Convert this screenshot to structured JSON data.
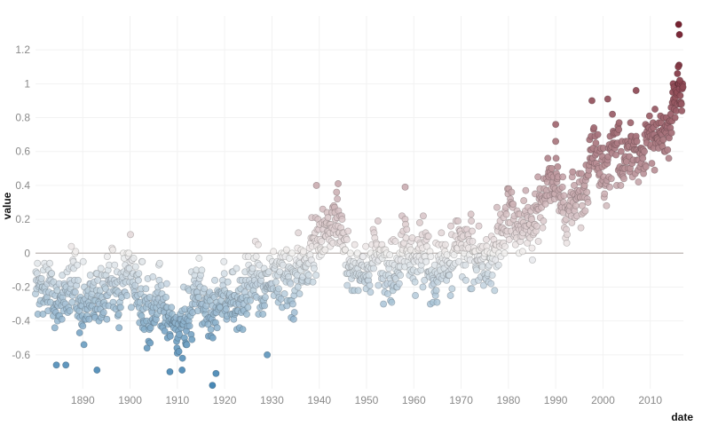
{
  "chart_data": {
    "type": "scatter",
    "title": "",
    "xlabel": "date",
    "ylabel": "value",
    "x_unit": "date (monthly)",
    "xlim": [
      "1880-01",
      "2016-12"
    ],
    "ylim": [
      -0.8,
      1.4
    ],
    "x_ticks": [
      1890,
      1900,
      1910,
      1920,
      1930,
      1940,
      1950,
      1960,
      1970,
      1980,
      1990,
      2000,
      2010
    ],
    "x_tick_labels": [
      "1890",
      "1900",
      "1910",
      "1920",
      "1930",
      "1940",
      "1950",
      "1960",
      "1970",
      "1980",
      "1990",
      "2000",
      "2010"
    ],
    "y_ticks": [
      -0.6,
      -0.4,
      -0.2,
      0,
      0.2,
      0.4,
      0.6,
      0.8,
      1,
      1.2
    ],
    "y_tick_labels": [
      "-0.6",
      "-0.4",
      "-0.2",
      "0",
      "0.2",
      "0.4",
      "0.6",
      "0.8",
      "1",
      "1.2"
    ],
    "grid": true,
    "zero_line": true,
    "color_scale": {
      "low": "#3a7fb0",
      "mid": "#f2f0ef",
      "high": "#6b0f1f",
      "domain": [
        -0.8,
        0,
        1.4
      ]
    },
    "decade_means": [
      [
        "1880-01",
        -0.2
      ],
      [
        "1882-01",
        -0.17
      ],
      [
        "1884-01",
        -0.28
      ],
      [
        "1886-01",
        -0.25
      ],
      [
        "1888-01",
        -0.12
      ],
      [
        "1890-01",
        -0.34
      ],
      [
        "1892-01",
        -0.27
      ],
      [
        "1894-01",
        -0.29
      ],
      [
        "1896-01",
        -0.17
      ],
      [
        "1898-01",
        -0.19
      ],
      [
        "1900-01",
        -0.06
      ],
      [
        "1902-01",
        -0.26
      ],
      [
        "1904-01",
        -0.44
      ],
      [
        "1906-01",
        -0.22
      ],
      [
        "1908-01",
        -0.43
      ],
      [
        "1910-01",
        -0.45
      ],
      [
        "1912-01",
        -0.35
      ],
      [
        "1914-01",
        -0.16
      ],
      [
        "1916-01",
        -0.36
      ],
      [
        "1918-01",
        -0.28
      ],
      [
        "1920-01",
        -0.26
      ],
      [
        "1922-01",
        -0.26
      ],
      [
        "1924-01",
        -0.25
      ],
      [
        "1926-01",
        -0.1
      ],
      [
        "1928-01",
        -0.25
      ],
      [
        "1930-01",
        -0.08
      ],
      [
        "1932-01",
        -0.14
      ],
      [
        "1934-01",
        -0.19
      ],
      [
        "1936-01",
        -0.12
      ],
      [
        "1938-01",
        -0.03
      ],
      [
        "1940-01",
        0.09
      ],
      [
        "1942-01",
        0.1
      ],
      [
        "1944-01",
        0.22
      ],
      [
        "1946-01",
        -0.06
      ],
      [
        "1948-01",
        -0.06
      ],
      [
        "1950-01",
        -0.16
      ],
      [
        "1952-01",
        0.02
      ],
      [
        "1954-01",
        -0.14
      ],
      [
        "1956-01",
        -0.16
      ],
      [
        "1958-01",
        0.08
      ],
      [
        "1960-01",
        -0.02
      ],
      [
        "1962-01",
        0.05
      ],
      [
        "1964-01",
        -0.2
      ],
      [
        "1966-01",
        -0.03
      ],
      [
        "1968-01",
        -0.08
      ],
      [
        "1970-01",
        0.05
      ],
      [
        "1972-01",
        0.02
      ],
      [
        "1974-01",
        -0.07
      ],
      [
        "1976-01",
        -0.1
      ],
      [
        "1978-01",
        0.07
      ],
      [
        "1980-01",
        0.27
      ],
      [
        "1982-01",
        0.14
      ],
      [
        "1984-01",
        0.16
      ],
      [
        "1986-01",
        0.19
      ],
      [
        "1988-01",
        0.4
      ],
      [
        "1990-01",
        0.44
      ],
      [
        "1992-01",
        0.23
      ],
      [
        "1994-01",
        0.31
      ],
      [
        "1996-01",
        0.34
      ],
      [
        "1998-01",
        0.63
      ],
      [
        "2000-01",
        0.42
      ],
      [
        "2002-01",
        0.63
      ],
      [
        "2004-01",
        0.54
      ],
      [
        "2006-01",
        0.64
      ],
      [
        "2008-01",
        0.54
      ],
      [
        "2010-01",
        0.72
      ],
      [
        "2012-01",
        0.65
      ],
      [
        "2014-01",
        0.75
      ],
      [
        "2015-06",
        0.92
      ],
      [
        "2016-12",
        0.98
      ]
    ],
    "outliers": [
      [
        "1884-06",
        -0.66
      ],
      [
        "1886-06",
        -0.66
      ],
      [
        "1893-01",
        -0.69
      ],
      [
        "1908-06",
        -0.7
      ],
      [
        "1911-01",
        -0.69
      ],
      [
        "1917-06",
        -0.78
      ],
      [
        "1918-03",
        -0.71
      ],
      [
        "1929-01",
        -0.6
      ],
      [
        "1939-06",
        0.4
      ],
      [
        "1944-01",
        0.41
      ],
      [
        "1958-03",
        0.39
      ],
      [
        "1990-01",
        0.76
      ],
      [
        "1997-09",
        0.9
      ],
      [
        "2001-01",
        0.91
      ],
      [
        "2007-01",
        0.96
      ],
      [
        "2016-01",
        1.35
      ],
      [
        "2016-03",
        1.29
      ],
      [
        "2016-02",
        1.11
      ],
      [
        "2015-12",
        1.1
      ],
      [
        "2015-10",
        1.06
      ],
      [
        "2016-04",
        1.02
      ],
      [
        "2016-05",
        0.93
      ]
    ],
    "points": [],
    "n_points": 1644
  }
}
